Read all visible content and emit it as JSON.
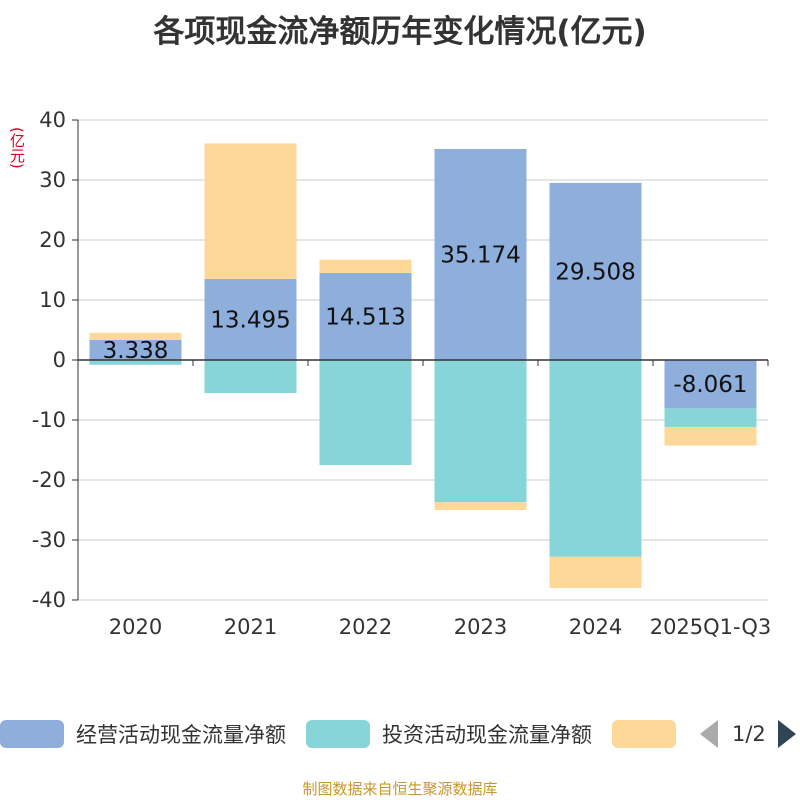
{
  "chart_data": {
    "type": "bar",
    "stacked": true,
    "title": "各项现金流净额历年变化情况(亿元)",
    "ylabel": "(亿元)",
    "ylim": [
      -40,
      40
    ],
    "yticks": [
      40,
      30,
      20,
      10,
      0,
      -10,
      -20,
      -30,
      -40
    ],
    "categories": [
      "2020",
      "2021",
      "2022",
      "2023",
      "2024",
      "2025Q1-Q3"
    ],
    "series": [
      {
        "name": "经营活动现金流量净额",
        "color": "#8eaedb",
        "values": [
          3.338,
          13.495,
          14.513,
          35.174,
          29.508,
          -8.061
        ],
        "show_labels": true
      },
      {
        "name": "投资活动现金流量净额",
        "color": "#87d5d8",
        "values": [
          -0.8,
          -5.5,
          -17.5,
          -23.7,
          -32.8,
          -3.1
        ],
        "show_labels": false
      },
      {
        "name": "",
        "color": "#fdd898",
        "values": [
          1.2,
          22.6,
          2.2,
          -1.3,
          -5.2,
          -3.1
        ],
        "show_labels": false
      }
    ],
    "data_labels": [
      "3.338",
      "13.495",
      "14.513",
      "35.174",
      "29.508",
      "-8.061"
    ],
    "legend": {
      "position": "bottom",
      "page": "1/2"
    }
  },
  "source": "制图数据来自恒生聚源数据库"
}
